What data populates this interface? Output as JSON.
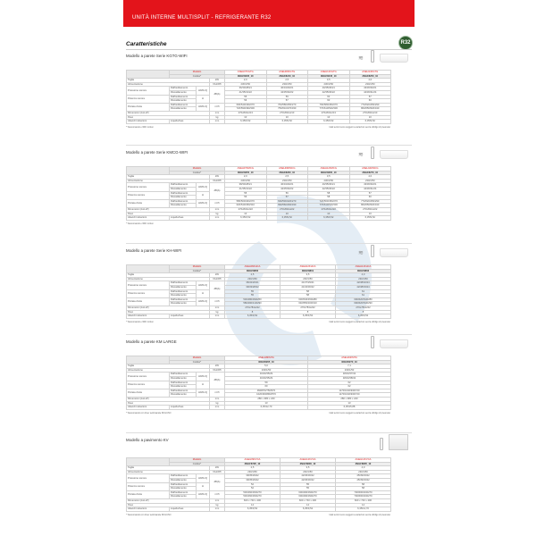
{
  "header": {
    "title": "UNITÀ INTERNE MULTISPLIT - REFRIGERANTE R32",
    "badge": "R32"
  },
  "page_title": "Caratteristiche",
  "row_labels": {
    "modello": "Modello",
    "codice": "Codice*",
    "taglia": "Taglia",
    "alimentazione": "Alimentazione",
    "pressione": "Pressione sonora",
    "potenza": "Potenza sonora",
    "portata": "Portata d'aria",
    "dimensioni": "Dimensioni (AxLxP)",
    "peso": "Peso",
    "attacchi": "Attacchi tubazioni",
    "raff": "Raffreddamento",
    "risc": "Riscaldamento",
    "hmlq": "H/M/L/Q",
    "h": "H",
    "liqgas": "Liquido/Gas",
    "u_taglia": "kW",
    "u_alim": "V/Hz/Ph",
    "u_db": "dB(A)",
    "u_portata": "m³/h",
    "u_mm": "mm",
    "u_kg": "kg"
  },
  "sections": [
    {
      "title": "Modello a parete Serie KGTG-WIFI",
      "unit": "wall",
      "wifi": true,
      "note_left": "* Telecomando e WiFi inclusi",
      "note_right": "I dati tecnici sono soggetti a variazioni senza obbligo di preavviso",
      "models": [
        {
          "name": "ASEH07KGTG",
          "code": "3NGF8235_10",
          "taglia": "2,0",
          "alim": "230/1/50",
          "p_raff": "36/33/28/21",
          "p_risc": "41/35/31/22",
          "w_raff": "55",
          "w_risc": "56",
          "q_raff": "600/540/430/270",
          "q_risc": "720/590/490/330",
          "dim": "270x834x213",
          "peso": "10",
          "att": "6,35/9,52"
        },
        {
          "name": "ASEH09KGTG",
          "code": "3NGF8240_10",
          "taglia": "2,5",
          "alim": "230/1/50",
          "p_raff": "40/34/29/21",
          "p_risc": "42/35/30/22",
          "w_raff": "59",
          "w_risc": "57",
          "q_raff": "700/580/450/270",
          "q_risc": "750/610/470/330",
          "dim": "270x834x213",
          "peso": "10",
          "att": "6,35/9,52"
        },
        {
          "name": "ASEH12KGTG",
          "code": "3NGF8245_10",
          "taglia": "3,5",
          "alim": "230/1/50",
          "p_raff": "40/35/30/21",
          "p_risc": "42/35/30/22",
          "w_raff": "60",
          "w_risc": "60",
          "q_raff": "760/580/450/270",
          "q_risc": "770/610/520/330",
          "dim": "270x834x213",
          "peso": "10",
          "att": "6,35/9,52"
        },
        {
          "name": "ASEH14KGTG",
          "code": "3NGF8250_10",
          "taglia": "4,0",
          "alim": "230/1/50",
          "p_raff": "43/36/30/21",
          "p_risc": "44/36/31/24",
          "w_raff": "57",
          "w_risc": "60",
          "q_raff": "770/620/450/290",
          "q_risc": "800/650/520/340",
          "dim": "270x834x213",
          "peso": "10",
          "att": "6,35/9,52"
        }
      ]
    },
    {
      "title": "Modello a parete Serie KMCG-WIFI",
      "unit": "wall",
      "wifi": true,
      "note_left": "* Telecomando e WiFi inclusi",
      "note_right": "",
      "models": [
        {
          "name": "ASEH07KMCG",
          "code": "3NGF8255_10",
          "taglia": "2,0",
          "alim": "230/1/50",
          "p_raff": "38/33/28/21",
          "p_risc": "41/35/31/22",
          "w_raff": "55",
          "w_risc": "56",
          "q_raff": "580/500/400/270",
          "q_risc": "620/540/450/310",
          "dim": "270x834x222",
          "peso": "10",
          "att": "6,35/9,52"
        },
        {
          "name": "ASEH09KMCG",
          "code": "3NGF8260_10",
          "taglia": "2,5",
          "alim": "230/1/50",
          "p_raff": "40/34/29/21",
          "p_risc": "42/35/30/22",
          "w_raff": "56",
          "w_risc": "57",
          "q_raff": "630/530/420/270",
          "q_risc": "690/560/460/330",
          "dim": "270x834x222",
          "peso": "10",
          "att": "6,35/9,52"
        },
        {
          "name": "ASEH12KMCG",
          "code": "3NGF8265_10",
          "taglia": "3,5",
          "alim": "230/1/50",
          "p_raff": "40/35/30/21",
          "p_risc": "42/35/30/22",
          "w_raff": "58",
          "w_risc": "58",
          "q_raff": "720/560/450/270",
          "q_risc": "770/610/520/330",
          "dim": "270x834x222",
          "peso": "10",
          "att": "6,35/9,52"
        },
        {
          "name": "ASEH14KMCG",
          "code": "3NGF8270_10",
          "taglia": "4,0",
          "alim": "230/1/50",
          "p_raff": "43/36/30/21",
          "p_risc": "44/36/31/24",
          "w_raff": "57",
          "w_risc": "60",
          "q_raff": "770/620/450/290",
          "q_risc": "800/650/520/340",
          "dim": "270x834x222",
          "peso": "10",
          "att": "6,35/9,52"
        }
      ]
    },
    {
      "title": "Modello a parete Serie KH-WIFI",
      "unit": "wall",
      "wifi": true,
      "note_left": "* Telecomando e WiFi inclusi",
      "note_right": "I dati tecnici sono soggetti a variazioni senza obbligo di preavviso",
      "models": [
        {
          "name": "ASEH09KHCA",
          "code": "3NGF8800",
          "taglia": "2,5",
          "alim": "230/1/50",
          "p_raff": "36/32/26/21",
          "p_risc": "39/33/28/22",
          "w_raff": "55",
          "w_risc": "55",
          "q_raff": "530/480/390/250",
          "q_risc": "580/490/410/290",
          "dim": "270x784x222",
          "peso": "8",
          "att": "6,35/9,52"
        },
        {
          "name": "ASEH12KHCA",
          "code": "3NGF8801",
          "taglia": "3,5",
          "alim": "230/1/50",
          "p_raff": "41/37/29/21",
          "p_risc": "41/34/30/22",
          "w_raff": "58",
          "w_risc": "58",
          "q_raff": "630/540/450/280",
          "q_risc": "640/550/460/310",
          "dim": "270x784x222",
          "peso": "8",
          "att": "6,35/9,52"
        },
        {
          "name": "ASEH14KHCA",
          "code": "3NGF8802",
          "taglia": "4,0",
          "alim": "230/1/50",
          "p_raff": "42/38/32/24",
          "p_risc": "42/38/33/24",
          "w_raff": "61",
          "w_risc": "61",
          "q_raff": "690/620/540/280",
          "q_risc": "690/620/540/290",
          "dim": "270x784x222",
          "peso": "8",
          "att": "6,35/9,52"
        }
      ]
    },
    {
      "title": "Modello a parete KM LARGE",
      "unit": "wall",
      "wifi": false,
      "note_left": "* Telecomando con timer settimanale INCLUSO",
      "note_right": "I dati tecnici sono soggetti a variazioni senza obbligo di preavviso",
      "models": [
        {
          "name": "ASEH18KMTA",
          "code": "3NGF8265_10",
          "taglia": "5,0",
          "alim": "230/1/50",
          "p_raff": "46/40/35/29",
          "p_risc": "46/40/35/29",
          "w_raff": "59",
          "w_risc": "60",
          "q_raff": "990/870/750/570",
          "q_risc": "1020/900/800/570",
          "dim": "280 x 980 x 240",
          "peso": "13",
          "att": "6,35/12,70"
        },
        {
          "name": "ASEH24KMTA",
          "code": "3NGF8270_10",
          "taglia": "7,1",
          "alim": "230/1/50",
          "p_raff": "48/43/37/32",
          "p_risc": "48/43/38/32",
          "w_raff": "62",
          "w_risc": "62",
          "q_raff": "1170/1040/930/720",
          "q_risc": "1170/1040/930/720",
          "dim": "280 x 980 x 240",
          "peso": "13",
          "att": "6,35/15,88"
        }
      ]
    },
    {
      "title": "Modello a pavimento KV",
      "unit": "floor",
      "wifi": false,
      "note_left": "* Telecomando con timer settimanale INCLUSO",
      "note_right": "I dati tecnici sono soggetti a variazioni senza obbligo di preavviso",
      "models": [
        {
          "name": "AGEH09KVCA",
          "code": "3NGF8795_10",
          "taglia": "2,5",
          "alim": "230/1/50",
          "p_raff": "39/35/29/22",
          "p_risc": "39/35/29/22",
          "w_raff": "52",
          "w_risc": "52",
          "q_raff": "530/460/360/270",
          "q_risc": "530/460/360/270",
          "dim": "600 x 740 x 200",
          "peso": "14",
          "att": "6,35/9,52"
        },
        {
          "name": "AGEH12KVCA",
          "code": "3NGF8800_10",
          "taglia": "3,5",
          "alim": "230/1/50",
          "p_raff": "42/36/30/22",
          "p_risc": "42/36/30/22",
          "w_raff": "55",
          "w_risc": "55",
          "q_raff": "600/490/390/270",
          "q_risc": "600/490/390/270",
          "dim": "600 x 740 x 200",
          "peso": "14",
          "att": "6,35/9,52"
        },
        {
          "name": "AGEH14KVCA",
          "code": "3NGF8805_10",
          "taglia": "4,0",
          "alim": "230/1/50",
          "p_raff": "45/39/33/22",
          "p_risc": "45/39/33/22",
          "w_raff": "58",
          "w_risc": "58",
          "q_raff": "700/600/460/270",
          "q_risc": "700/600/460/270",
          "dim": "600 x 740 x 200",
          "peso": "14",
          "att": "6,35/12,70"
        }
      ]
    }
  ]
}
